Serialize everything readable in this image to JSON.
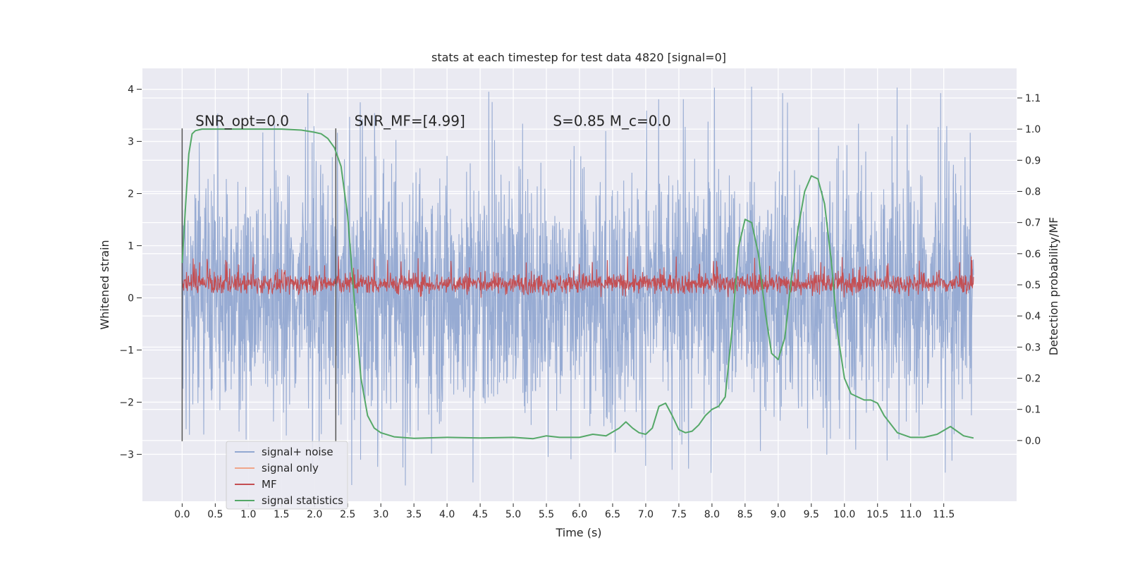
{
  "chart_data": {
    "type": "line",
    "title": "stats at each timestep for test data 4820 [signal=0]",
    "xlabel": "Time (s)",
    "ylabel": "Whitened strain",
    "y2label": "Detection probability/MF",
    "xlim": [
      -0.6,
      12.6
    ],
    "ylim": [
      -3.9,
      4.4
    ],
    "y2lim": [
      -0.195,
      1.195
    ],
    "x_ticks": [
      0.0,
      0.5,
      1.0,
      1.5,
      2.0,
      2.5,
      3.0,
      3.5,
      4.0,
      4.5,
      5.0,
      5.5,
      6.0,
      6.5,
      7.0,
      7.5,
      8.0,
      8.5,
      9.0,
      9.5,
      10.0,
      10.5,
      11.0,
      11.5
    ],
    "x_tick_labels": [
      "0.0",
      "0.5",
      "1.0",
      "1.5",
      "2.0",
      "2.5",
      "3.0",
      "3.5",
      "4.0",
      "4.5",
      "5.0",
      "5.5",
      "6.0",
      "6.5",
      "7.0",
      "7.5",
      "8.0",
      "8.5",
      "9.0",
      "9.5",
      "10.0",
      "10.5",
      "11.0",
      "11.5"
    ],
    "y_ticks": [
      -3,
      -2,
      -1,
      0,
      1,
      2,
      3,
      4
    ],
    "y_tick_labels": [
      "−3",
      "−2",
      "−1",
      "0",
      "1",
      "2",
      "3",
      "4"
    ],
    "y2_ticks": [
      0.0,
      0.1,
      0.2,
      0.3,
      0.4,
      0.5,
      0.6,
      0.7,
      0.8,
      0.9,
      1.0,
      1.1
    ],
    "y2_tick_labels": [
      "0.0",
      "0.1",
      "0.2",
      "0.3",
      "0.4",
      "0.5",
      "0.6",
      "0.7",
      "0.8",
      "0.9",
      "1.0",
      "1.1"
    ],
    "grid": true,
    "legend_position": "lower-left",
    "annotations": [
      {
        "text": "SNR_opt=0.0",
        "x": 0.2
      },
      {
        "text": "SNR_MF=[4.99]",
        "x": 2.6
      },
      {
        "text": "S=0.85   M_c=0.0",
        "x": 5.6
      }
    ],
    "vlines": [
      0.0,
      2.32
    ],
    "vline_range": [
      -2.75,
      3.25
    ],
    "noise": {
      "x_range": [
        0.0,
        11.95
      ],
      "typical_range": [
        -2.0,
        2.2
      ],
      "max": 4.1,
      "min": -3.6
    },
    "mf": {
      "x_range": [
        0.0,
        11.95
      ],
      "typical_range": [
        0.05,
        0.5
      ]
    },
    "series": [
      {
        "name": "signal+ noise",
        "color": "#92a8d1",
        "axis": "left"
      },
      {
        "name": "signal only",
        "color": "#f0a58a",
        "axis": "left"
      },
      {
        "name": "MF",
        "color": "#c44e52",
        "axis": "left"
      },
      {
        "name": "signal statistics",
        "color": "#55a868",
        "axis": "right",
        "x": [
          0.0,
          0.05,
          0.1,
          0.15,
          0.2,
          0.3,
          0.5,
          1.0,
          1.5,
          1.8,
          2.0,
          2.1,
          2.2,
          2.3,
          2.4,
          2.5,
          2.6,
          2.7,
          2.8,
          2.9,
          3.0,
          3.2,
          3.5,
          4.0,
          4.5,
          5.0,
          5.3,
          5.5,
          5.7,
          6.0,
          6.2,
          6.4,
          6.6,
          6.7,
          6.8,
          6.9,
          7.0,
          7.1,
          7.2,
          7.3,
          7.4,
          7.5,
          7.6,
          7.7,
          7.8,
          7.9,
          8.0,
          8.1,
          8.2,
          8.3,
          8.4,
          8.5,
          8.6,
          8.7,
          8.8,
          8.9,
          9.0,
          9.1,
          9.2,
          9.3,
          9.4,
          9.5,
          9.6,
          9.7,
          9.8,
          9.9,
          10.0,
          10.1,
          10.2,
          10.3,
          10.4,
          10.5,
          10.6,
          10.8,
          11.0,
          11.2,
          11.4,
          11.6,
          11.8,
          11.95
        ],
        "values": [
          0.57,
          0.75,
          0.92,
          0.985,
          0.995,
          1.0,
          1.0,
          1.0,
          1.0,
          0.997,
          0.99,
          0.985,
          0.97,
          0.94,
          0.88,
          0.72,
          0.45,
          0.2,
          0.08,
          0.04,
          0.025,
          0.012,
          0.007,
          0.01,
          0.008,
          0.01,
          0.006,
          0.015,
          0.01,
          0.01,
          0.02,
          0.015,
          0.04,
          0.06,
          0.04,
          0.025,
          0.02,
          0.04,
          0.11,
          0.12,
          0.08,
          0.035,
          0.025,
          0.03,
          0.05,
          0.08,
          0.1,
          0.11,
          0.14,
          0.35,
          0.62,
          0.71,
          0.7,
          0.6,
          0.42,
          0.28,
          0.26,
          0.33,
          0.52,
          0.68,
          0.8,
          0.85,
          0.84,
          0.76,
          0.58,
          0.34,
          0.2,
          0.15,
          0.14,
          0.13,
          0.13,
          0.12,
          0.08,
          0.025,
          0.01,
          0.01,
          0.02,
          0.045,
          0.015,
          0.008
        ]
      }
    ]
  }
}
